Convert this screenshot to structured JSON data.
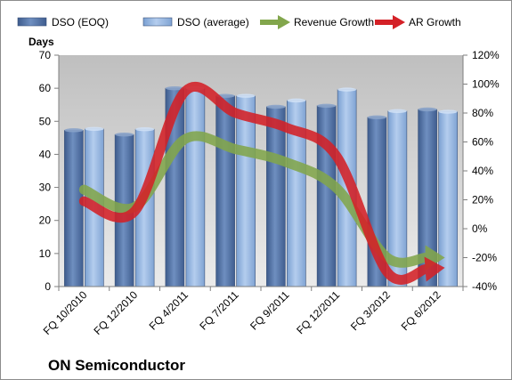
{
  "chart_data": {
    "type": "bar",
    "title": "ON Semiconductor",
    "ylabel": "Days",
    "y2label": "",
    "categories": [
      "FQ 10/2010",
      "FQ 12/2010",
      "FQ 4/2011",
      "FQ 7/2011",
      "FQ 9/2011",
      "FQ 12/2011",
      "FQ 3/2012",
      "FQ 6/2012"
    ],
    "ylim": [
      0,
      70
    ],
    "yticks": [
      0,
      10,
      20,
      30,
      40,
      50,
      60,
      70
    ],
    "y2lim": [
      -40,
      120
    ],
    "y2ticks": [
      "-40%",
      "-20%",
      "0%",
      "20%",
      "40%",
      "60%",
      "80%",
      "100%",
      "120%"
    ],
    "grid": false,
    "legend_position": "top",
    "series": [
      {
        "name": "DSO (EOQ)",
        "type": "bar",
        "axis": "left",
        "color": "#4f6fa0",
        "values": [
          47.3,
          46,
          60,
          57.7,
          54.4,
          54.7,
          51.2,
          53.6
        ]
      },
      {
        "name": "DSO (average)",
        "type": "bar",
        "axis": "left",
        "color": "#8fb1dd",
        "values": [
          47.7,
          47.6,
          60,
          57.7,
          56.3,
          59.6,
          53.1,
          52.9
        ]
      },
      {
        "name": "Revenue Growth",
        "type": "line",
        "axis": "right",
        "unit": "%",
        "color": "#82a64c",
        "values": [
          27,
          15,
          62,
          55,
          46,
          28,
          -20,
          -20
        ]
      },
      {
        "name": "AR Growth",
        "type": "line",
        "axis": "right",
        "unit": "%",
        "color": "#d42127",
        "values": [
          19,
          12,
          95,
          80,
          70,
          50,
          -30,
          -28
        ]
      }
    ]
  }
}
